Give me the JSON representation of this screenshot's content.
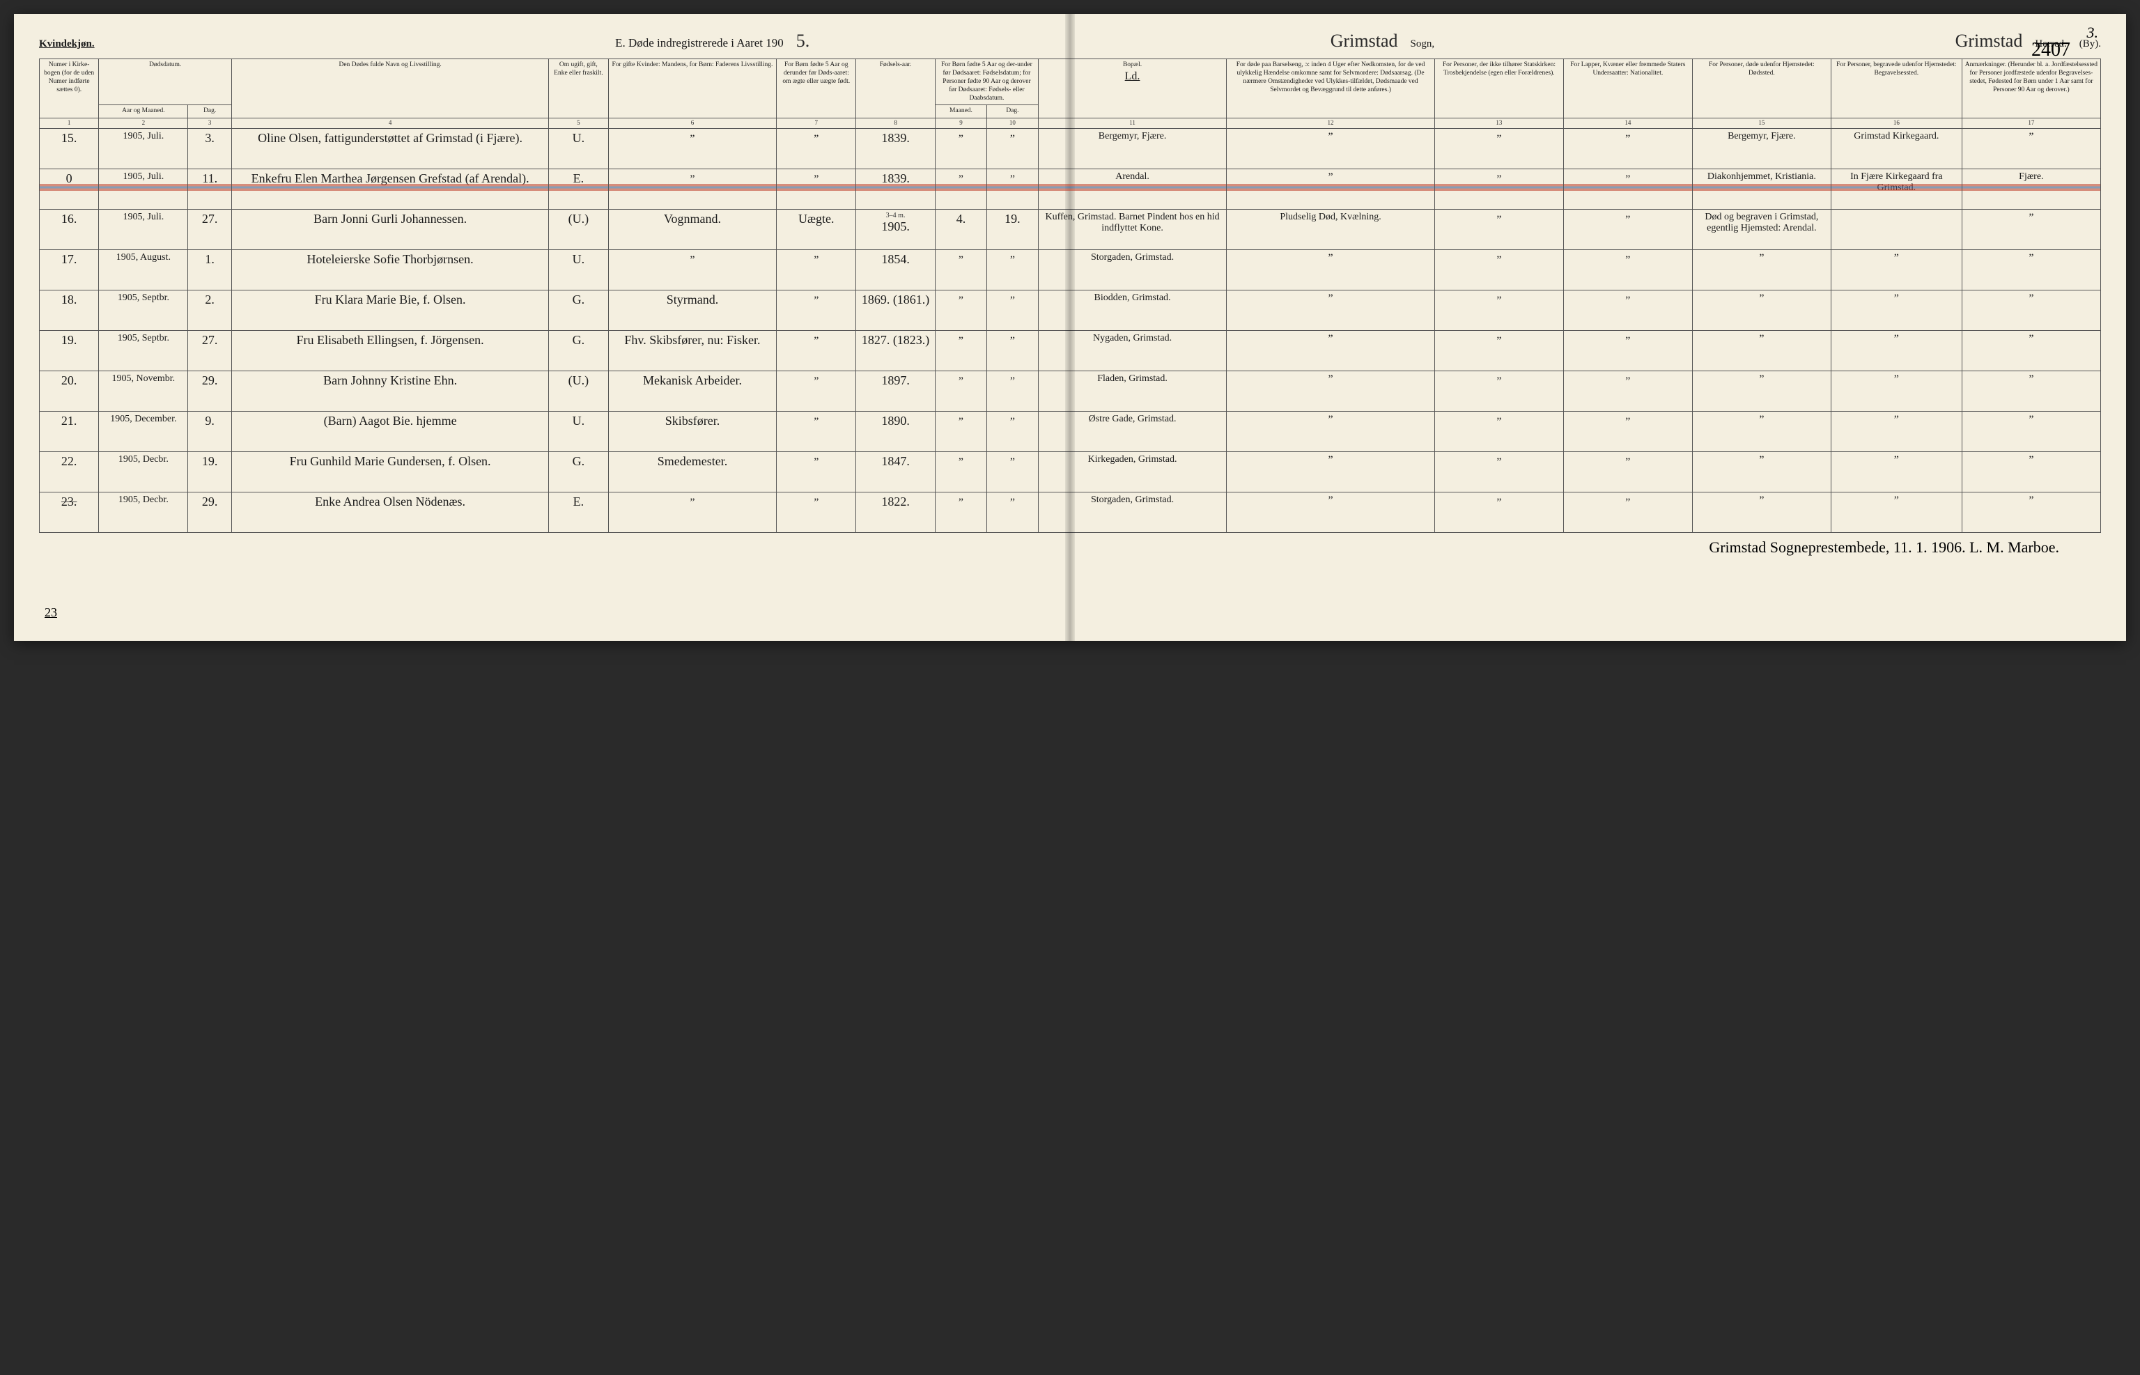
{
  "page": {
    "gender_heading": "Kvindekjøn.",
    "title_prefix": "E.  Døde indregistrerede i Aaret 190",
    "title_year_suffix": "5.",
    "sogn_script": "Grimstad",
    "sogn_label": "Sogn,",
    "herred_script": "Grimstad",
    "herred_label_struck": "Herred.",
    "by_label": "(By).",
    "page_number_printed": "3.",
    "page_number_hand": "2407"
  },
  "columns": {
    "c1": "Numer i Kirke-bogen (for de uden Numer indførte sættes 0).",
    "c2_top": "Dødsdatum.",
    "c2a": "Aar og Maaned.",
    "c2b": "Dag.",
    "c4": "Den Dødes fulde Navn og Livsstilling.",
    "c5": "Om ugift, gift, Enke eller fraskilt.",
    "c6": "For gifte Kvinder: Mandens, for Børn: Faderens Livsstilling.",
    "c7": "For Børn fødte 5 Aar og derunder før Døds-aaret: om ægte eller uægte født.",
    "c8": "Fødsels-aar.",
    "c9_top": "For Børn fødte 5 Aar og der-under før Dødsaaret: Fødselsdatum; for Personer fødte 90 Aar og derover før Dødsaaret: Fødsels- eller Daabsdatum.",
    "c9a": "Maaned.",
    "c9b": "Dag.",
    "c11_top": "Bopæl.",
    "c11_note": "Ld.",
    "c12": "For døde paa Barselseng, ɔ: inden 4 Uger efter Nedkomsten, for de ved ulykkelig Hændelse omkomne samt for Selvmordere: Dødsaarsag. (De nærmere Omstændigheder ved Ulykkes-tilfældet, Dødsmaade ved Selvmordet og Bevæggrund til dette anføres.)",
    "c13": "For Personer, der ikke tilhører Statskirken: Trosbekjendelse (egen eller Forældrenes).",
    "c14": "For Lapper, Kvæner eller fremmede Staters Undersaatter: Nationalitet.",
    "c15": "For Personer, døde udenfor Hjemstedet: Dødssted.",
    "c16": "For Personer, begravede udenfor Hjemstedet: Begravelsessted.",
    "c17": "Anmærkninger. (Herunder bl. a. Jordfæstelsessted for Personer jordfæstede udenfor Begravelses-stedet, Fødested for Børn under 1 Aar samt for Personer 90 Aar og derover.)"
  },
  "colnums": [
    "1",
    "2",
    "3",
    "4",
    "5",
    "6",
    "7",
    "8",
    "9",
    "10",
    "11",
    "12",
    "13",
    "14",
    "15",
    "16",
    "17"
  ],
  "rows": [
    {
      "num": "15.",
      "yr_mo": "1905, Juli.",
      "day": "3.",
      "name": "Oline Olsen, fattigunderstøttet af Grimstad (i Fjære).",
      "status": "U.",
      "occ": "”",
      "legit": "”",
      "birth": "1839.",
      "bm": "”",
      "bd": "”",
      "res": "Bergemyr, Fjære.",
      "cause": "”",
      "c13": "”",
      "c14": "”",
      "c15": "Bergemyr, Fjære.",
      "c16": "Grimstad Kirkegaard.",
      "c17": "”",
      "struck": false
    },
    {
      "num": "0",
      "yr_mo": "1905, Juli.",
      "day": "11.",
      "name": "Enkefru Elen Marthea Jørgensen Grefstad (af Arendal).",
      "status": "E.",
      "occ": "”",
      "legit": "”",
      "birth": "1839.",
      "bm": "”",
      "bd": "”",
      "res": "Arendal.",
      "cause": "”",
      "c13": "”",
      "c14": "”",
      "c15": "Diakonhjemmet, Kristiania.",
      "c16": "In Fjære Kirkegaard fra Grimstad.",
      "c17": "Fjære.",
      "struck": true
    },
    {
      "num": "16.",
      "yr_mo": "1905, Juli.",
      "day": "27.",
      "name": "Barn Jonni Gurli Johannessen.",
      "status": "(U.)",
      "occ": "Vognmand.",
      "legit": "Uægte.",
      "birth": "1905.",
      "bm": "4.",
      "bd": "19.",
      "res": "Kuffen, Grimstad. Barnet Pindent hos en hid indflyttet Kone.",
      "cause": "Pludselig Død, Kvælning.",
      "c13": "”",
      "c14": "”",
      "c15": "Død og begraven i Grimstad, egentlig Hjemsted: Arendal.",
      "c16": "",
      "c17": "”",
      "note_top": "3–4 m.",
      "struck": false
    },
    {
      "num": "17.",
      "yr_mo": "1905, August.",
      "day": "1.",
      "name": "Hoteleierske Sofie Thorbjørnsen.",
      "status": "U.",
      "occ": "”",
      "legit": "”",
      "birth": "1854.",
      "bm": "”",
      "bd": "”",
      "res": "Storgaden, Grimstad.",
      "cause": "”",
      "c13": "”",
      "c14": "”",
      "c15": "”",
      "c16": "”",
      "c17": "”",
      "struck": false
    },
    {
      "num": "18.",
      "yr_mo": "1905, Septbr.",
      "day": "2.",
      "name": "Fru Klara Marie Bie, f. Olsen.",
      "status": "G.",
      "occ": "Styrmand.",
      "legit": "”",
      "birth": "1869. (1861.)",
      "bm": "”",
      "bd": "”",
      "res": "Biodden, Grimstad.",
      "cause": "”",
      "c13": "”",
      "c14": "”",
      "c15": "”",
      "c16": "”",
      "c17": "”",
      "struck": false
    },
    {
      "num": "19.",
      "yr_mo": "1905, Septbr.",
      "day": "27.",
      "name": "Fru Elisabeth Ellingsen, f. Jörgensen.",
      "status": "G.",
      "occ": "Fhv. Skibsfører, nu: Fisker.",
      "legit": "”",
      "birth": "1827. (1823.)",
      "bm": "”",
      "bd": "”",
      "res": "Nygaden, Grimstad.",
      "cause": "”",
      "c13": "”",
      "c14": "”",
      "c15": "”",
      "c16": "”",
      "c17": "”",
      "struck": false
    },
    {
      "num": "20.",
      "yr_mo": "1905, Novembr.",
      "day": "29.",
      "name": "Barn Johnny Kristine Ehn.",
      "status": "(U.)",
      "occ": "Mekanisk Arbeider.",
      "legit": "”",
      "birth": "1897.",
      "bm": "”",
      "bd": "”",
      "res": "Fladen, Grimstad.",
      "cause": "”",
      "c13": "”",
      "c14": "”",
      "c15": "”",
      "c16": "”",
      "c17": "”",
      "struck": false
    },
    {
      "num": "21.",
      "yr_mo": "1905, December.",
      "day": "9.",
      "name": "(Barn) Aagot Bie. hjemme",
      "status": "U.",
      "occ": "Skibsfører.",
      "legit": "”",
      "birth": "1890.",
      "bm": "”",
      "bd": "”",
      "res": "Østre Gade, Grimstad.",
      "cause": "”",
      "c13": "”",
      "c14": "”",
      "c15": "”",
      "c16": "”",
      "c17": "”",
      "struck": false
    },
    {
      "num": "22.",
      "yr_mo": "1905, Decbr.",
      "day": "19.",
      "name": "Fru Gunhild Marie Gundersen, f. Olsen.",
      "status": "G.",
      "occ": "Smedemester.",
      "legit": "”",
      "birth": "1847.",
      "bm": "”",
      "bd": "”",
      "res": "Kirkegaden, Grimstad.",
      "cause": "”",
      "c13": "”",
      "c14": "”",
      "c15": "”",
      "c16": "”",
      "c17": "”",
      "struck": false
    },
    {
      "num": "23.",
      "num_struck": true,
      "yr_mo": "1905, Decbr.",
      "day": "29.",
      "name": "Enke Andrea Olsen Nödenæs.",
      "status": "E.",
      "occ": "”",
      "legit": "”",
      "birth": "1822.",
      "bm": "”",
      "bd": "”",
      "res": "Storgaden, Grimstad.",
      "cause": "”",
      "c13": "”",
      "c14": "”",
      "c15": "”",
      "c16": "”",
      "c17": "”",
      "struck": false
    }
  ],
  "footer": {
    "left_margin_num": "23",
    "text": "Grimstad Sogneprestembede, 11. 1. 1906.   L. M. Marboe."
  },
  "colwidths_pct": [
    3.0,
    4.5,
    2.2,
    16.0,
    3.0,
    8.5,
    4.0,
    4.0,
    2.6,
    2.6,
    9.5,
    10.5,
    6.5,
    6.5,
    7.0,
    6.6,
    7.0
  ],
  "colors": {
    "paper": "#f4efe0",
    "ink": "#1a1a1a",
    "border": "#555555",
    "strike_red": "#be3c28",
    "strike_blue": "#285a96"
  }
}
